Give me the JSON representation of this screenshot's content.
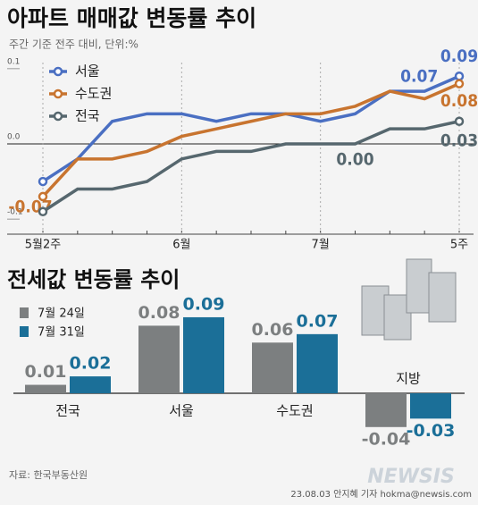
{
  "chart_data": [
    {
      "type": "line",
      "title": "아파트 매매값 변동률 추이",
      "subtitle": "주간 기준 전주 대비, 단위:%",
      "categories": [
        "5월2주",
        null,
        null,
        null,
        "6월",
        null,
        null,
        null,
        "7월",
        null,
        null,
        null,
        "5주"
      ],
      "series": [
        {
          "name": "서울",
          "color": "#4a6fc2",
          "values": [
            -0.05,
            -0.02,
            0.03,
            0.04,
            0.04,
            0.03,
            0.04,
            0.04,
            0.03,
            0.04,
            0.07,
            0.07,
            0.09
          ],
          "value_labels": [
            null,
            null,
            null,
            null,
            null,
            null,
            null,
            null,
            null,
            null,
            null,
            "0.07",
            "0.09"
          ]
        },
        {
          "name": "수도권",
          "color": "#c8742f",
          "values": [
            -0.07,
            -0.02,
            -0.02,
            -0.01,
            0.01,
            0.02,
            0.03,
            0.04,
            0.04,
            0.05,
            0.07,
            0.06,
            0.08
          ],
          "value_labels": [
            "-0.07",
            null,
            null,
            null,
            null,
            null,
            null,
            null,
            null,
            null,
            null,
            null,
            "0.08"
          ]
        },
        {
          "name": "전국",
          "color": "#56676e",
          "values": [
            -0.09,
            -0.06,
            -0.06,
            -0.05,
            -0.02,
            -0.01,
            -0.01,
            0.0,
            0.0,
            0.0,
            0.02,
            0.02,
            0.03
          ],
          "value_labels": [
            null,
            null,
            null,
            null,
            null,
            null,
            null,
            null,
            null,
            "0.00",
            null,
            null,
            "0.03"
          ]
        }
      ],
      "ylim": [
        -0.12,
        0.12
      ],
      "yticks": [
        {
          "value": 0.1,
          "label": "0.1"
        },
        {
          "value": 0,
          "label": "0.0"
        },
        {
          "value": -0.1,
          "label": "-0.1"
        }
      ]
    },
    {
      "type": "bar",
      "title": "전세값 변동률 추이",
      "categories": [
        "전국",
        "서울",
        "수도권",
        "지방"
      ],
      "series": [
        {
          "name": "7월 24일",
          "color": "#7c7f80",
          "values": [
            0.01,
            0.08,
            0.06,
            -0.04
          ]
        },
        {
          "name": "7월 31일",
          "color": "#1b6f98",
          "values": [
            0.02,
            0.09,
            0.07,
            -0.03
          ]
        }
      ]
    }
  ],
  "footer": {
    "source": "자료: 한국부동산원",
    "credit": "23.08.03 안지혜 기자 hokma@newsis.com",
    "logo": "NEWSIS"
  }
}
